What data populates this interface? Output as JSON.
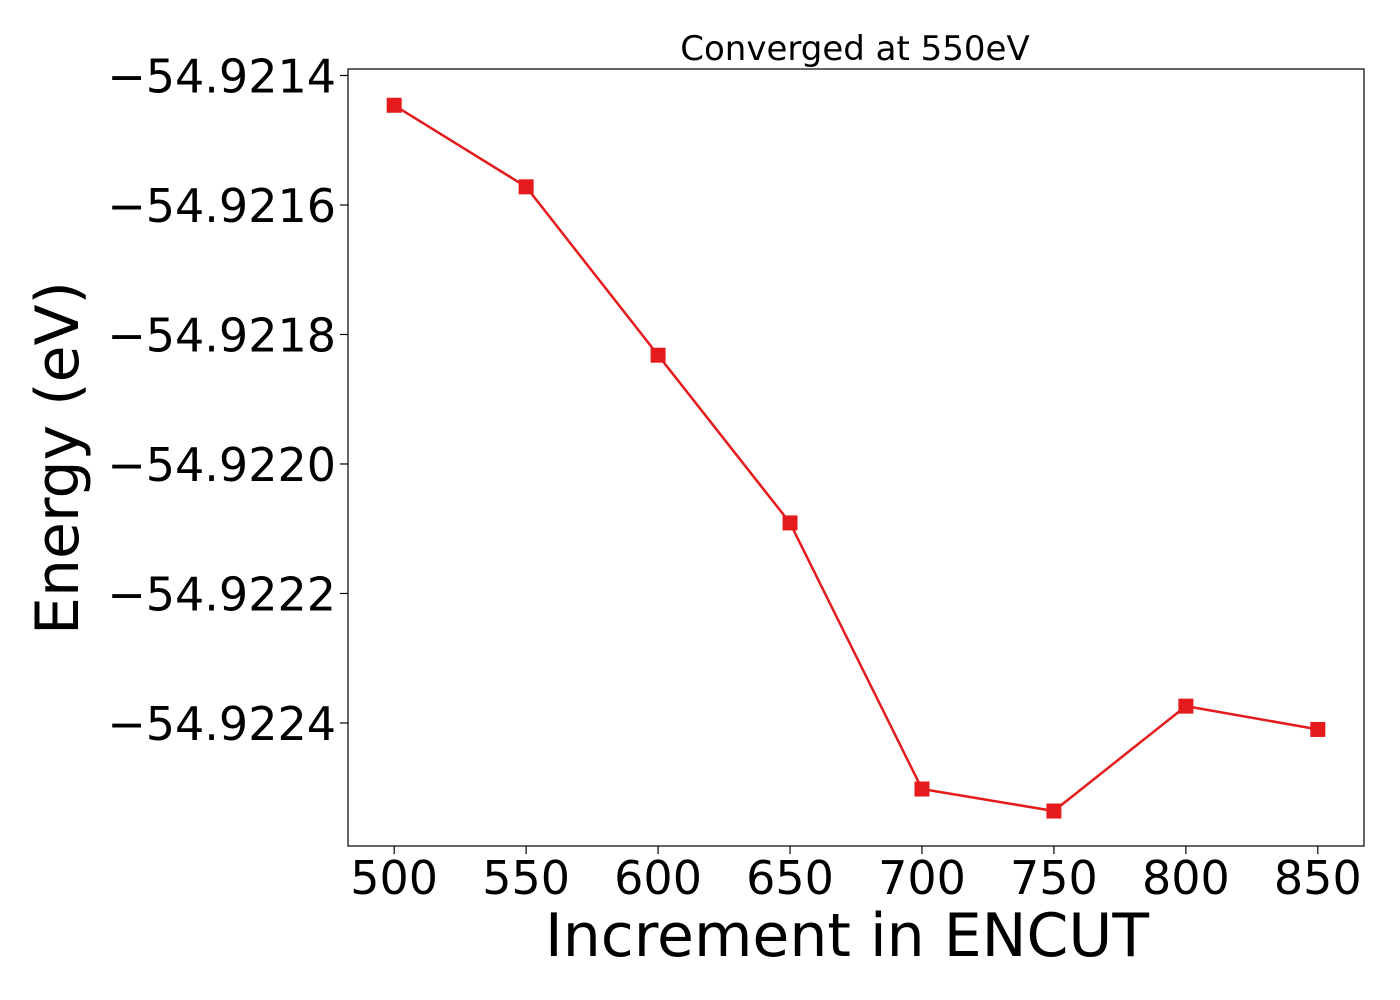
{
  "chart_data": {
    "type": "line",
    "title": "Converged at 550eV",
    "xlabel": "Increment in ENCUT",
    "ylabel": "Energy (eV)",
    "x": [
      500,
      550,
      600,
      650,
      700,
      750,
      800,
      850
    ],
    "x_ticks": [
      500,
      550,
      600,
      650,
      700,
      750,
      800,
      850
    ],
    "x_tick_labels": [
      "500",
      "550",
      "600",
      "650",
      "700",
      "750",
      "800",
      "850"
    ],
    "y_ticks": [
      -54.9214,
      -54.9216,
      -54.9218,
      -54.922,
      -54.9222,
      -54.9224
    ],
    "y_tick_labels": [
      "−54.9214",
      "−54.9216",
      "−54.9218",
      "−54.9220",
      "−54.9222",
      "−54.9224"
    ],
    "xlim": [
      482.5,
      867.5
    ],
    "ylim": [
      -54.92259,
      -54.92139
    ],
    "series": [
      {
        "values": [
          -54.921446,
          -54.921572,
          -54.921832,
          -54.922091,
          -54.922502,
          -54.922536,
          -54.922374,
          -54.92241
        ],
        "color": "#e41a1c",
        "marker": "square"
      }
    ],
    "grid": false,
    "legend": "none"
  }
}
